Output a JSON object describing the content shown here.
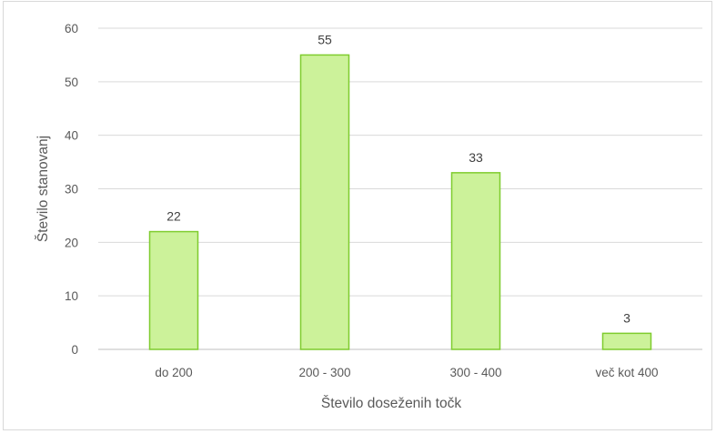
{
  "chart_data": {
    "type": "bar",
    "categories": [
      "do 200",
      "200 - 300",
      "300 - 400",
      "več kot 400"
    ],
    "values": [
      22,
      55,
      33,
      3
    ],
    "data_labels": [
      "22",
      "55",
      "33",
      "3"
    ],
    "title": "",
    "xlabel": "Število doseženih točk",
    "ylabel": "Število stanovanj",
    "ylim": [
      0,
      60
    ],
    "yticks": [
      0,
      10,
      20,
      30,
      40,
      50,
      60
    ],
    "ytick_labels": [
      "0",
      "10",
      "20",
      "30",
      "40",
      "50",
      "60"
    ],
    "grid": true,
    "legend": "none",
    "colors": {
      "bar_fill": "#ccf29a",
      "bar_stroke": "#7fcc2e",
      "grid": "#d9d9d9",
      "axis": "#bfbfbf"
    }
  }
}
